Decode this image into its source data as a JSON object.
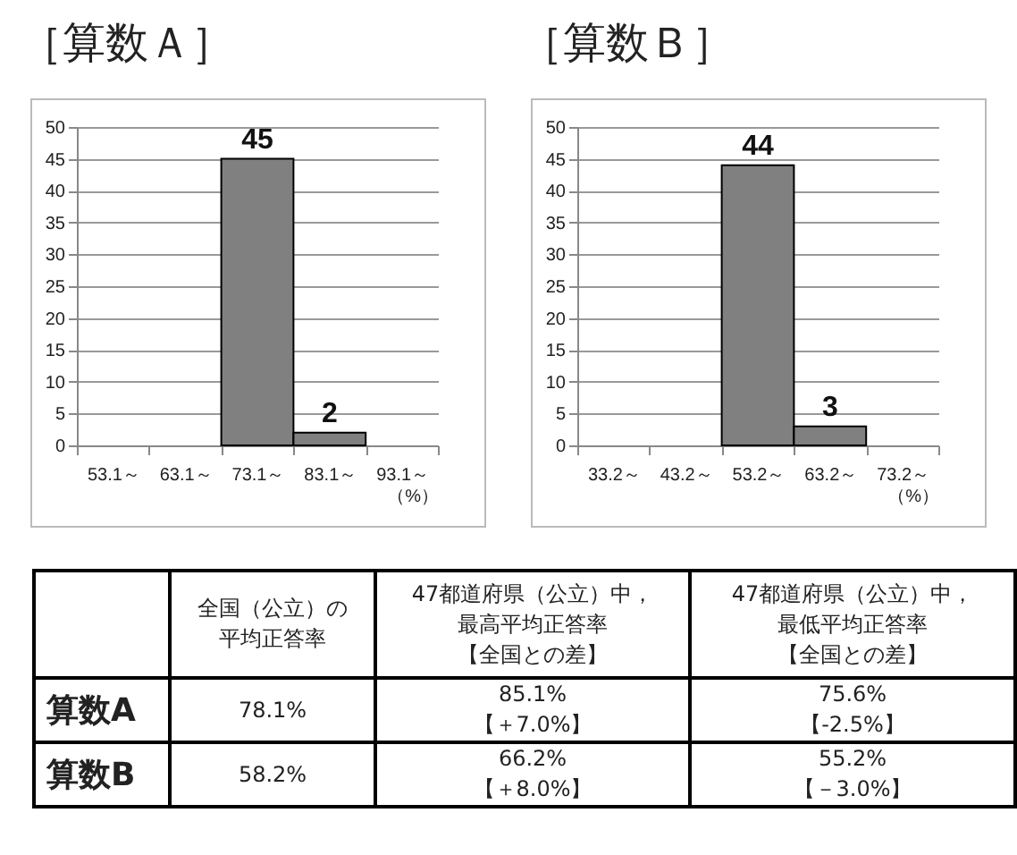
{
  "chart_data": [
    {
      "type": "bar",
      "title": "［算数Ａ］",
      "categories": [
        "53.1～",
        "63.1～",
        "73.1～",
        "83.1～",
        "93.1～"
      ],
      "values": [
        0,
        0,
        45,
        2,
        0
      ],
      "value_labels": [
        null,
        null,
        "45",
        "2",
        null
      ],
      "color": "#808080",
      "xlabel": "（%）",
      "ylim": [
        0,
        50
      ],
      "yticks": [
        0,
        5,
        10,
        15,
        20,
        25,
        30,
        35,
        40,
        45,
        50
      ],
      "grid": "y"
    },
    {
      "type": "bar",
      "title": "［算数Ｂ］",
      "categories": [
        "33.2～",
        "43.2～",
        "53.2～",
        "63.2～",
        "73.2～"
      ],
      "values": [
        0,
        0,
        44,
        3,
        0
      ],
      "value_labels": [
        null,
        null,
        "44",
        "3",
        null
      ],
      "color": "#808080",
      "xlabel": "（%）",
      "ylim": [
        0,
        50
      ],
      "yticks": [
        0,
        5,
        10,
        15,
        20,
        25,
        30,
        35,
        40,
        45,
        50
      ],
      "grid": "y"
    },
    {
      "type": "other",
      "annotations": [
        "全国（公立）の平均正答率",
        "47都道府県（公立）中，最高平均正答率【全国との差】",
        "47都道府県（公立）中，最低平均正答率【全国との差】",
        "算数A",
        "78.1%",
        "85.1%\n【＋7.0%】",
        "75.6%\n【-2.5%】",
        "算数B",
        "58.2%",
        "66.2%\n【＋8.0%】",
        "55.2%\n【－3.0%】"
      ]
    }
  ]
}
